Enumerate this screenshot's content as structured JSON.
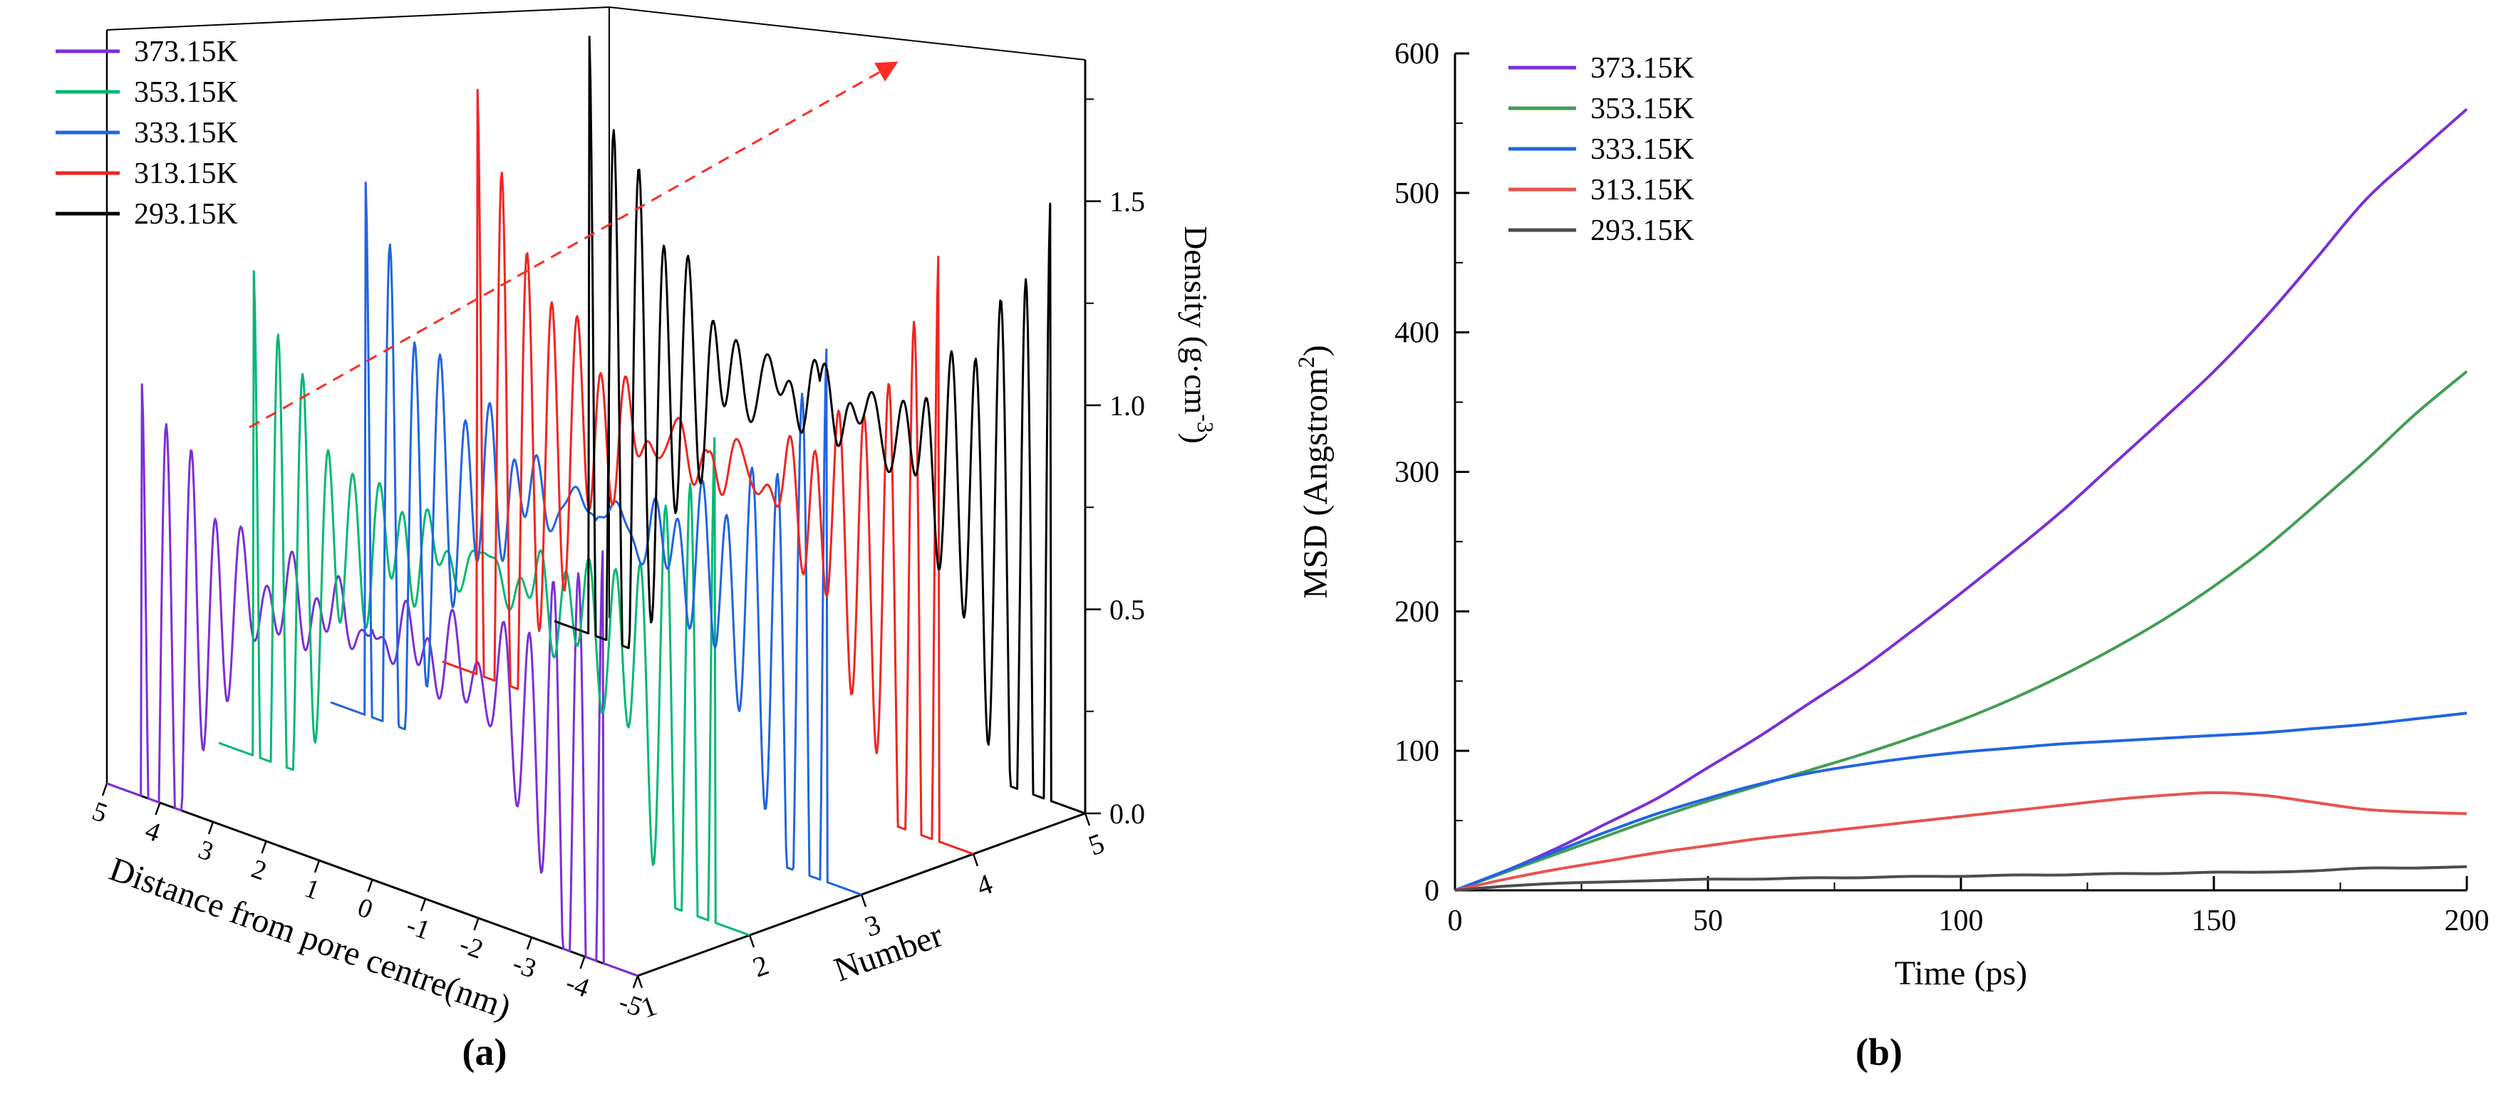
{
  "captions": {
    "a": "(a)",
    "b": "(b)"
  },
  "chart_data": [
    {
      "id": "a",
      "type": "line",
      "subtype": "3d-waterfall-density-profiles",
      "xlabel": "Distance from pore centre(nm)",
      "ylabel": "Number",
      "zlabel": "Density (g·cm^-3^)",
      "x_tick_labels": [
        "5",
        "4",
        "3",
        "2",
        "1",
        "0",
        "-1",
        "-2",
        "-3",
        "-4",
        "-5"
      ],
      "number_ticks": [
        1,
        2,
        3,
        4,
        5
      ],
      "density_ticks": [
        {
          "value": 0,
          "label": "0.0"
        },
        {
          "value": 0.5,
          "label": "0.5"
        },
        {
          "value": 1.0,
          "label": "1.0"
        },
        {
          "value": 1.5,
          "label": "1.5"
        }
      ],
      "density_minor_ticks": [
        0.25,
        0.75,
        1.25,
        1.75
      ],
      "distance_range": [
        -5,
        5
      ],
      "density_range": [
        0,
        1.85
      ],
      "profile": {
        "pore_half_width_nm": 4.35,
        "oscillation_period_nm": 0.47,
        "decay_length_nm": 1.05
      },
      "series": [
        {
          "name": "373.15K",
          "color": "#7B2FD6",
          "number": 1,
          "wall_peak_density": 1.02,
          "plateau_density": 0.62
        },
        {
          "name": "353.15K",
          "color": "#00B873",
          "number": 2,
          "wall_peak_density": 1.2,
          "plateau_density": 0.66
        },
        {
          "name": "333.15K",
          "color": "#2065E0",
          "number": 3,
          "wall_peak_density": 1.32,
          "plateau_density": 0.7
        },
        {
          "name": "313.15K",
          "color": "#F0251F",
          "number": 4,
          "wall_peak_density": 1.45,
          "plateau_density": 0.74
        },
        {
          "name": "293.15K",
          "color": "#000000",
          "number": 5,
          "wall_peak_density": 1.48,
          "plateau_density": 0.78
        }
      ],
      "annotation_arrow": {
        "color": "#FF2B25",
        "style": "dashed",
        "direction": "up-right along wall peaks"
      }
    },
    {
      "id": "b",
      "type": "line",
      "xlabel": "Time (ps)",
      "ylabel": "MSD (Angstrom^2^)",
      "xlim": [
        0,
        200
      ],
      "ylim": [
        0,
        600
      ],
      "x_major_ticks": [
        0,
        50,
        100,
        150,
        200
      ],
      "x_minor_ticks": [
        25,
        75,
        125,
        175
      ],
      "y_major_ticks": [
        0,
        100,
        200,
        300,
        400,
        500,
        600
      ],
      "y_minor_ticks": [
        50,
        150,
        250,
        350,
        450,
        550
      ],
      "x": [
        0,
        10,
        20,
        30,
        40,
        50,
        60,
        70,
        80,
        90,
        100,
        110,
        120,
        130,
        140,
        150,
        160,
        170,
        180,
        190,
        200
      ],
      "series": [
        {
          "name": "373.15K",
          "color": "#7B2FD6",
          "values": [
            0,
            14,
            30,
            48,
            66,
            88,
            110,
            134,
            158,
            185,
            213,
            242,
            272,
            305,
            338,
            372,
            410,
            452,
            495,
            528,
            560
          ]
        },
        {
          "name": "353.15K",
          "color": "#449D52",
          "values": [
            0,
            13,
            26,
            39,
            52,
            64,
            75,
            86,
            97,
            109,
            122,
            137,
            154,
            173,
            194,
            218,
            245,
            276,
            308,
            342,
            372
          ]
        },
        {
          "name": "333.15K",
          "color": "#2065E0",
          "values": [
            0,
            14,
            28,
            42,
            55,
            66,
            76,
            84,
            90,
            95,
            99,
            102,
            105,
            107,
            109,
            111,
            113,
            116,
            119,
            123,
            127
          ]
        },
        {
          "name": "313.15K",
          "color": "#E8534F",
          "values": [
            0,
            8,
            15,
            21,
            27,
            32,
            37,
            41,
            45,
            49,
            53,
            57,
            61,
            65,
            68,
            70,
            68,
            63,
            58,
            56,
            55
          ]
        },
        {
          "name": "293.15K",
          "color": "#4D4D4D",
          "values": [
            0,
            3,
            5,
            6,
            7,
            8,
            8,
            9,
            9,
            10,
            10,
            11,
            11,
            12,
            12,
            13,
            13,
            14,
            16,
            16,
            17
          ]
        }
      ],
      "legend_position": "top-left"
    }
  ]
}
